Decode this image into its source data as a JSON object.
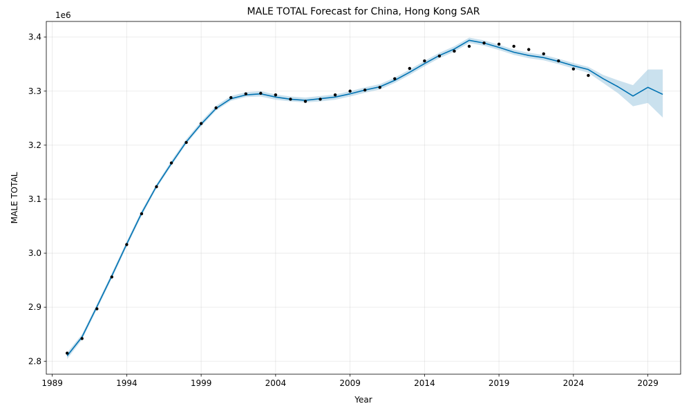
{
  "chart_data": {
    "type": "line",
    "title": "MALE TOTAL Forecast for China, Hong Kong SAR",
    "xlabel": "Year",
    "ylabel": "MALE TOTAL",
    "y_offset_label": "1e6",
    "y_scale": 1000000,
    "xlim": [
      1988.6,
      2031.2
    ],
    "ylim": [
      2776000,
      3429000
    ],
    "x_ticks": [
      1989,
      1994,
      1999,
      2004,
      2009,
      2014,
      2019,
      2024,
      2029
    ],
    "y_ticks": [
      2800000,
      2900000,
      3000000,
      3100000,
      3200000,
      3300000,
      3400000
    ],
    "y_tick_labels": [
      "2.8",
      "2.9",
      "3.0",
      "3.1",
      "3.2",
      "3.3",
      "3.4"
    ],
    "grid": true,
    "colors": {
      "forecast_line": "#0072b2",
      "interval": "#a6cde3",
      "observed": "#000000"
    },
    "observed": {
      "x": [
        1990,
        1991,
        1992,
        1993,
        1994,
        1995,
        1996,
        1997,
        1998,
        1999,
        2000,
        2001,
        2002,
        2003,
        2004,
        2005,
        2006,
        2007,
        2008,
        2009,
        2010,
        2011,
        2012,
        2013,
        2014,
        2015,
        2016,
        2017,
        2018,
        2019,
        2020,
        2021,
        2022,
        2023,
        2024,
        2025
      ],
      "y": [
        2815000,
        2842000,
        2897000,
        2956000,
        3016000,
        3073000,
        3123000,
        3167000,
        3205000,
        3240000,
        3269000,
        3288000,
        3295000,
        3296000,
        3293000,
        3285000,
        3281000,
        3285000,
        3293000,
        3300000,
        3302000,
        3307000,
        3323000,
        3342000,
        3356000,
        3365000,
        3374000,
        3383000,
        3389000,
        3387000,
        3383000,
        3377000,
        3369000,
        3356000,
        3341000,
        3329000
      ]
    },
    "forecast": {
      "x": [
        1990,
        1991,
        1992,
        1993,
        1994,
        1995,
        1996,
        1997,
        1998,
        1999,
        2000,
        2001,
        2002,
        2003,
        2004,
        2005,
        2006,
        2007,
        2008,
        2009,
        2010,
        2011,
        2012,
        2013,
        2014,
        2015,
        2016,
        2017,
        2018,
        2019,
        2020,
        2021,
        2022,
        2023,
        2024,
        2025,
        2026,
        2027,
        2028,
        2029,
        2030
      ],
      "y": [
        2810000,
        2845000,
        2901000,
        2958000,
        3017000,
        3074000,
        3124000,
        3166000,
        3206000,
        3239000,
        3268000,
        3286000,
        3293000,
        3295000,
        3289000,
        3285000,
        3283000,
        3286000,
        3289000,
        3295000,
        3302000,
        3308000,
        3320000,
        3335000,
        3351000,
        3366000,
        3378000,
        3394000,
        3389000,
        3381000,
        3372000,
        3366000,
        3362000,
        3355000,
        3347000,
        3340000,
        3323000,
        3308000,
        3291000,
        3307000,
        3294000
      ],
      "lower": [
        2804000,
        2840000,
        2896000,
        2953000,
        3012000,
        3069000,
        3120000,
        3162000,
        3202000,
        3235000,
        3264000,
        3282000,
        3289000,
        3290000,
        3284000,
        3281000,
        3279000,
        3281000,
        3284000,
        3290000,
        3297000,
        3303000,
        3315000,
        3330000,
        3346000,
        3361000,
        3373000,
        3389000,
        3384000,
        3376000,
        3367000,
        3361000,
        3357000,
        3350000,
        3342000,
        3334000,
        3315000,
        3296000,
        3272000,
        3278000,
        3251000
      ],
      "upper": [
        2816000,
        2850000,
        2906000,
        2963000,
        3022000,
        3079000,
        3128000,
        3171000,
        3211000,
        3244000,
        3273000,
        3291000,
        3298000,
        3300000,
        3294000,
        3290000,
        3288000,
        3291000,
        3294000,
        3300000,
        3307000,
        3313000,
        3325000,
        3340000,
        3356000,
        3371000,
        3383000,
        3399000,
        3394000,
        3386000,
        3377000,
        3371000,
        3367000,
        3360000,
        3352000,
        3345000,
        3330000,
        3320000,
        3311000,
        3340000,
        3340000
      ]
    }
  }
}
